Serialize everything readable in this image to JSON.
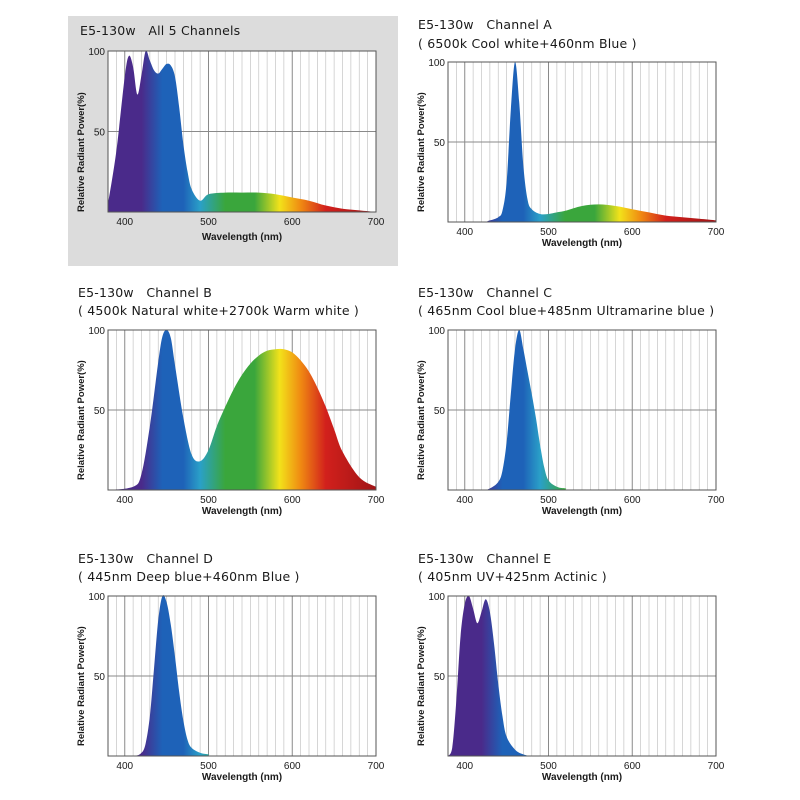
{
  "colors": {
    "violet": "#4a2a8a",
    "blue": "#1e62b8",
    "cyan": "#2aa0c8",
    "green": "#3aa63c",
    "yellow": "#f2e21a",
    "orange": "#f08a12",
    "red": "#d2201c",
    "darkred": "#a01416",
    "panel_highlight": "#dcdcdc"
  },
  "chart_data": [
    {
      "type": "area",
      "title": "E5-130w   All 5 Channels",
      "subtitle": "",
      "xlabel": "Wavelength (nm)",
      "ylabel": "Relative Radiant Power(%)",
      "xlim": [
        380,
        700
      ],
      "ylim": [
        0,
        100
      ],
      "xticks": [
        400,
        500,
        600,
        700
      ],
      "yticks": [
        50,
        100
      ],
      "grid": true,
      "series": [
        {
          "x": [
            380,
            390,
            400,
            405,
            410,
            415,
            420,
            425,
            430,
            435,
            440,
            445,
            450,
            455,
            460,
            465,
            470,
            475,
            480,
            490,
            500,
            520,
            540,
            560,
            580,
            600,
            620,
            640,
            660,
            680,
            700
          ],
          "values": [
            5,
            38,
            84,
            97,
            90,
            73,
            85,
            100,
            94,
            88,
            86,
            89,
            92,
            91,
            84,
            65,
            42,
            25,
            14,
            7,
            11,
            12,
            12,
            12,
            11,
            9,
            7,
            4,
            2,
            1,
            0
          ]
        }
      ]
    },
    {
      "type": "area",
      "title": "E5-130w   Channel A",
      "subtitle": "( 6500k Cool white+460nm Blue )",
      "xlabel": "Wavelength (nm)",
      "ylabel": "Relative Radiant Power(%)",
      "xlim": [
        380,
        700
      ],
      "ylim": [
        0,
        100
      ],
      "xticks": [
        400,
        500,
        600,
        700
      ],
      "yticks": [
        50,
        100
      ],
      "grid": true,
      "series": [
        {
          "x": [
            380,
            420,
            430,
            440,
            445,
            450,
            455,
            460,
            465,
            470,
            475,
            480,
            490,
            500,
            510,
            520,
            540,
            560,
            580,
            600,
            620,
            640,
            660,
            680,
            700
          ],
          "values": [
            0,
            0,
            1,
            3,
            7,
            25,
            70,
            100,
            75,
            35,
            14,
            8,
            5,
            5,
            6,
            7,
            10,
            11,
            10,
            8,
            6,
            4,
            3,
            2,
            1
          ]
        }
      ]
    },
    {
      "type": "area",
      "title": "E5-130w   Channel B",
      "subtitle": "( 4500k Natural white+2700k Warm white )",
      "xlabel": "Wavelength (nm)",
      "ylabel": "Relative Radiant Power(%)",
      "xlim": [
        380,
        700
      ],
      "ylim": [
        0,
        100
      ],
      "xticks": [
        400,
        500,
        600,
        700
      ],
      "yticks": [
        50,
        100
      ],
      "grid": true,
      "series": [
        {
          "x": [
            380,
            410,
            420,
            430,
            440,
            445,
            450,
            455,
            460,
            470,
            480,
            490,
            500,
            510,
            520,
            530,
            540,
            550,
            560,
            570,
            580,
            590,
            600,
            610,
            620,
            630,
            640,
            650,
            660,
            680,
            700
          ],
          "values": [
            0,
            2,
            10,
            40,
            80,
            96,
            100,
            95,
            78,
            45,
            22,
            18,
            25,
            40,
            52,
            63,
            72,
            79,
            84,
            87,
            88,
            88,
            86,
            81,
            74,
            64,
            52,
            38,
            24,
            8,
            2
          ]
        }
      ]
    },
    {
      "type": "area",
      "title": "E5-130w   Channel C",
      "subtitle": "( 465nm Cool blue+485nm Ultramarine blue )",
      "xlabel": "Wavelength (nm)",
      "ylabel": "Relative Radiant Power(%)",
      "xlim": [
        380,
        700
      ],
      "ylim": [
        0,
        100
      ],
      "xticks": [
        400,
        500,
        600,
        700
      ],
      "yticks": [
        50,
        100
      ],
      "grid": true,
      "series": [
        {
          "x": [
            380,
            420,
            430,
            440,
            445,
            450,
            455,
            460,
            465,
            470,
            475,
            480,
            485,
            490,
            495,
            500,
            510,
            520,
            540,
            700
          ],
          "values": [
            0,
            0,
            1,
            5,
            12,
            30,
            60,
            88,
            100,
            88,
            74,
            60,
            45,
            28,
            14,
            6,
            2,
            1,
            0,
            0
          ]
        }
      ]
    },
    {
      "type": "area",
      "title": "E5-130w   Channel D",
      "subtitle": "( 445nm Deep blue+460nm Blue )",
      "xlabel": "Wavelength (nm)",
      "ylabel": "Relative Radiant Power(%)",
      "xlim": [
        380,
        700
      ],
      "ylim": [
        0,
        100
      ],
      "xticks": [
        400,
        500,
        600,
        700
      ],
      "yticks": [
        50,
        100
      ],
      "grid": true,
      "series": [
        {
          "x": [
            380,
            410,
            420,
            425,
            430,
            435,
            440,
            445,
            450,
            455,
            460,
            465,
            470,
            475,
            480,
            490,
            500,
            520,
            700
          ],
          "values": [
            0,
            0,
            2,
            8,
            25,
            55,
            85,
            100,
            96,
            82,
            62,
            40,
            22,
            10,
            5,
            2,
            1,
            0,
            0
          ]
        }
      ]
    },
    {
      "type": "area",
      "title": "E5-130w   Channel E",
      "subtitle": "( 405nm UV+425nm Actinic )",
      "xlabel": "Wavelength (nm)",
      "ylabel": "Relative Radiant Power(%)",
      "xlim": [
        380,
        700
      ],
      "ylim": [
        0,
        100
      ],
      "xticks": [
        400,
        500,
        600,
        700
      ],
      "yticks": [
        50,
        100
      ],
      "grid": true,
      "series": [
        {
          "x": [
            380,
            385,
            390,
            395,
            400,
            405,
            410,
            415,
            420,
            425,
            430,
            435,
            440,
            445,
            450,
            460,
            470,
            480,
            500,
            700
          ],
          "values": [
            0,
            5,
            35,
            75,
            95,
            100,
            92,
            83,
            90,
            98,
            90,
            70,
            45,
            25,
            12,
            4,
            1,
            0,
            0,
            0
          ]
        }
      ]
    }
  ]
}
